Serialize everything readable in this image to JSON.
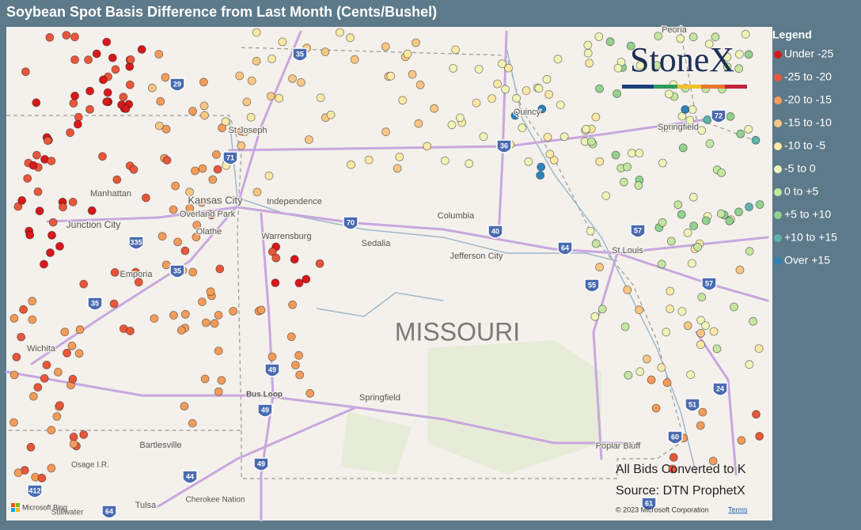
{
  "title": "Soybean Spot Basis Difference from Last Month (Cents/Bushel)",
  "legend": {
    "title": "Legend",
    "items": [
      {
        "label": "Under -25",
        "color": "#d7191c"
      },
      {
        "label": "-25 to -20",
        "color": "#e8573a"
      },
      {
        "label": "-20 to -15",
        "color": "#f39c5a"
      },
      {
        "label": "-15 to -10",
        "color": "#f9c784"
      },
      {
        "label": "-10 to -5",
        "color": "#fde8a6"
      },
      {
        "label": "-5 to 0",
        "color": "#eef5b8"
      },
      {
        "label": "0 to +5",
        "color": "#c5e6a0"
      },
      {
        "label": "+5 to +10",
        "color": "#92d18f"
      },
      {
        "label": "+10 to +15",
        "color": "#5fb3a8"
      },
      {
        "label": "Over +15",
        "color": "#2b83ba"
      }
    ]
  },
  "logo": "StoneX",
  "map_labels": [
    "MISSOURI",
    "St Joseph",
    "Kansas City",
    "Independence",
    "Overland Park",
    "Olathe",
    "Manhattan",
    "Junction City",
    "Emporia",
    "Wichita",
    "Warrensburg",
    "Sedalia",
    "Columbia",
    "Jefferson City",
    "St Louis",
    "Springfield",
    "Quincy",
    "Peoria",
    "Springfield",
    "Bartlesville",
    "Tulsa",
    "Osage I.R.",
    "Cherokee Nation",
    "Poplar Bluff",
    "Bus Loop",
    "Stillwater"
  ],
  "highway_shields": [
    "35",
    "29",
    "71",
    "36",
    "70",
    "40",
    "64",
    "55",
    "57",
    "72",
    "335",
    "35",
    "35",
    "49",
    "49",
    "44",
    "49",
    "412",
    "64",
    "51",
    "60",
    "24",
    "61",
    "57"
  ],
  "notes": [
    "All Bids Converted to K",
    "Source: DTN ProphetX"
  ],
  "attribution": "© 2023 Microsoft Corporation",
  "terms": "Terms",
  "bing": "Microsoft Bing"
}
